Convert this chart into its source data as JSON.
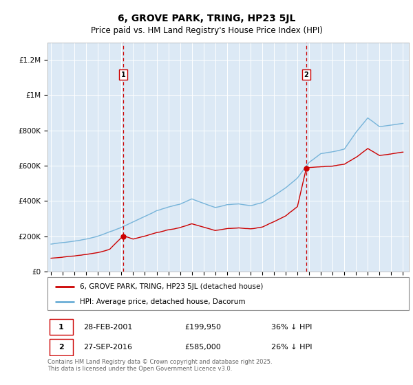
{
  "title": "6, GROVE PARK, TRING, HP23 5JL",
  "subtitle": "Price paid vs. HM Land Registry's House Price Index (HPI)",
  "title_fontsize": 10,
  "subtitle_fontsize": 8.5,
  "background_color": "#dce9f5",
  "outer_background": "#ffffff",
  "ylim": [
    0,
    1300000
  ],
  "yticks": [
    0,
    200000,
    400000,
    600000,
    800000,
    1000000,
    1200000
  ],
  "legend_entry1": "6, GROVE PARK, TRING, HP23 5JL (detached house)",
  "legend_entry2": "HPI: Average price, detached house, Dacorum",
  "transaction1_date": "28-FEB-2001",
  "transaction1_price": "£199,950",
  "transaction1_hpi": "36% ↓ HPI",
  "transaction2_date": "27-SEP-2016",
  "transaction2_price": "£585,000",
  "transaction2_hpi": "26% ↓ HPI",
  "footer": "Contains HM Land Registry data © Crown copyright and database right 2025.\nThis data is licensed under the Open Government Licence v3.0.",
  "hpi_color": "#6baed6",
  "price_color": "#cc0000",
  "vline_color": "#cc0000",
  "transaction1_x": 2001.16,
  "transaction1_y": 199950,
  "transaction2_x": 2016.75,
  "transaction2_y": 585000,
  "xlim_min": 1994.7,
  "xlim_max": 2025.5
}
